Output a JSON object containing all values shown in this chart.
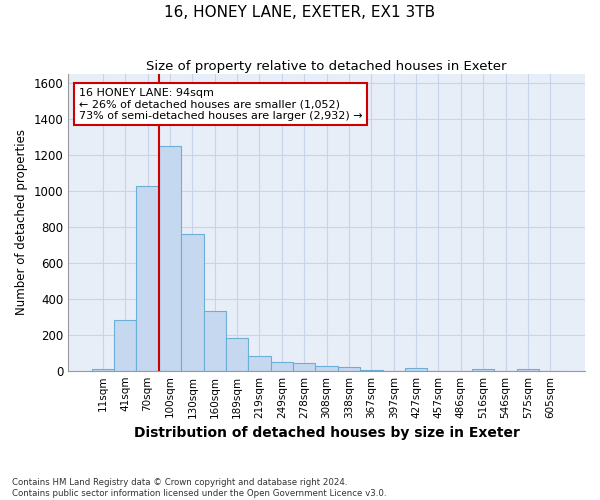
{
  "title": "16, HONEY LANE, EXETER, EX1 3TB",
  "subtitle": "Size of property relative to detached houses in Exeter",
  "xlabel": "Distribution of detached houses by size in Exeter",
  "ylabel": "Number of detached properties",
  "footer_line1": "Contains HM Land Registry data © Crown copyright and database right 2024.",
  "footer_line2": "Contains public sector information licensed under the Open Government Licence v3.0.",
  "bar_labels": [
    "11sqm",
    "41sqm",
    "70sqm",
    "100sqm",
    "130sqm",
    "160sqm",
    "189sqm",
    "219sqm",
    "249sqm",
    "278sqm",
    "308sqm",
    "338sqm",
    "367sqm",
    "397sqm",
    "427sqm",
    "457sqm",
    "486sqm",
    "516sqm",
    "546sqm",
    "575sqm",
    "605sqm"
  ],
  "bar_values": [
    10,
    280,
    1030,
    1250,
    760,
    330,
    180,
    80,
    50,
    40,
    25,
    20,
    5,
    0,
    15,
    0,
    0,
    10,
    0,
    10,
    0
  ],
  "bar_color": "#c5d8f0",
  "bar_edge_color": "#6baed6",
  "grid_color": "#c8d4e8",
  "background_color": "#e8eef8",
  "annotation_line1": "16 HONEY LANE: 94sqm",
  "annotation_line2": "← 26% of detached houses are smaller (1,052)",
  "annotation_line3": "73% of semi-detached houses are larger (2,932) →",
  "annotation_box_color": "#ffffff",
  "annotation_box_edge": "#cc0000",
  "vline_color": "#cc0000",
  "vline_x_index": 3,
  "ylim": [
    0,
    1650
  ],
  "yticks": [
    0,
    200,
    400,
    600,
    800,
    1000,
    1200,
    1400,
    1600
  ]
}
